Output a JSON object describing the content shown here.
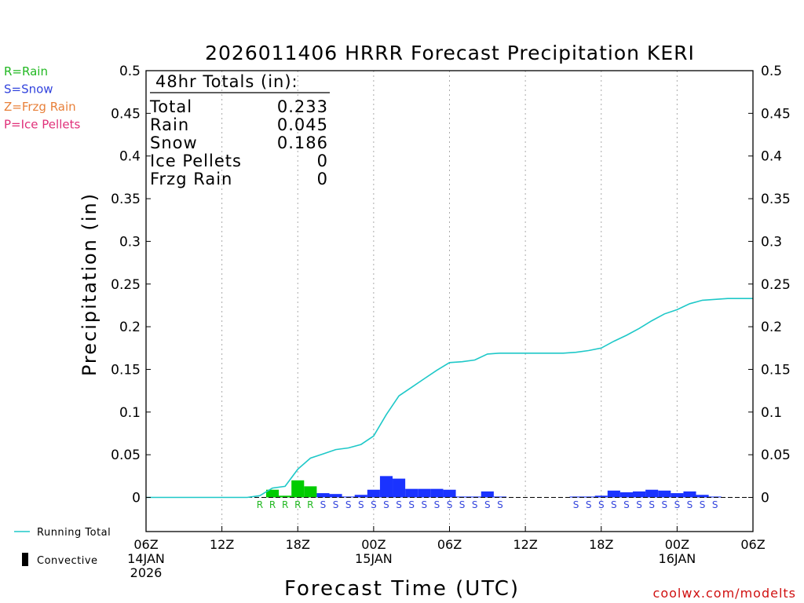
{
  "chart_data": {
    "type": "bar",
    "title": "2026011406 HRRR Forecast Precipitation KERI",
    "xlabel": "Forecast Time (UTC)",
    "ylabel": "Precipitation (in)",
    "ylim": [
      -0.04,
      0.5
    ],
    "xlim": [
      0,
      48
    ],
    "yticks": [
      0,
      0.05,
      0.1,
      0.15,
      0.2,
      0.25,
      0.3,
      0.35,
      0.4,
      0.45,
      0.5
    ],
    "ytick_labels": [
      "0",
      "0.05",
      "0.1",
      "0.15",
      "0.2",
      "0.25",
      "0.3",
      "0.35",
      "0.4",
      "0.45",
      "0.5"
    ],
    "xticks": [
      {
        "t": 0,
        "lines": [
          "06Z",
          "14JAN",
          "2026"
        ]
      },
      {
        "t": 6,
        "lines": [
          "12Z"
        ]
      },
      {
        "t": 12,
        "lines": [
          "18Z"
        ]
      },
      {
        "t": 18,
        "lines": [
          "00Z",
          "15JAN"
        ]
      },
      {
        "t": 24,
        "lines": [
          "06Z"
        ]
      },
      {
        "t": 30,
        "lines": [
          "12Z"
        ]
      },
      {
        "t": 36,
        "lines": [
          "18Z"
        ]
      },
      {
        "t": 42,
        "lines": [
          "00Z",
          "16JAN"
        ]
      },
      {
        "t": 48,
        "lines": [
          "06Z"
        ]
      }
    ],
    "gridlines_x": [
      6,
      12,
      18,
      24,
      30,
      36,
      42
    ],
    "bars": [
      {
        "t": 10,
        "value": 0.009,
        "ptype": "R"
      },
      {
        "t": 11,
        "value": 0.002,
        "ptype": "R"
      },
      {
        "t": 12,
        "value": 0.02,
        "ptype": "R"
      },
      {
        "t": 13,
        "value": 0.013,
        "ptype": "R"
      },
      {
        "t": 14,
        "value": 0.005,
        "ptype": "S"
      },
      {
        "t": 15,
        "value": 0.004,
        "ptype": "S"
      },
      {
        "t": 16,
        "value": 0.001,
        "ptype": "S"
      },
      {
        "t": 17,
        "value": 0.003,
        "ptype": "S"
      },
      {
        "t": 18,
        "value": 0.009,
        "ptype": "S"
      },
      {
        "t": 19,
        "value": 0.025,
        "ptype": "S"
      },
      {
        "t": 20,
        "value": 0.022,
        "ptype": "S"
      },
      {
        "t": 21,
        "value": 0.01,
        "ptype": "S"
      },
      {
        "t": 22,
        "value": 0.01,
        "ptype": "S"
      },
      {
        "t": 23,
        "value": 0.01,
        "ptype": "S"
      },
      {
        "t": 24,
        "value": 0.009,
        "ptype": "S"
      },
      {
        "t": 25,
        "value": 0.001,
        "ptype": "S"
      },
      {
        "t": 26,
        "value": 0.001,
        "ptype": "S"
      },
      {
        "t": 27,
        "value": 0.007,
        "ptype": "S"
      },
      {
        "t": 28,
        "value": 0.001,
        "ptype": "S"
      },
      {
        "t": 34,
        "value": 0.001,
        "ptype": "S"
      },
      {
        "t": 35,
        "value": 0.001,
        "ptype": "S"
      },
      {
        "t": 36,
        "value": 0.002,
        "ptype": "S"
      },
      {
        "t": 37,
        "value": 0.008,
        "ptype": "S"
      },
      {
        "t": 38,
        "value": 0.006,
        "ptype": "S"
      },
      {
        "t": 39,
        "value": 0.007,
        "ptype": "S"
      },
      {
        "t": 40,
        "value": 0.009,
        "ptype": "S"
      },
      {
        "t": 41,
        "value": 0.008,
        "ptype": "S"
      },
      {
        "t": 42,
        "value": 0.005,
        "ptype": "S"
      },
      {
        "t": 43,
        "value": 0.007,
        "ptype": "S"
      },
      {
        "t": 44,
        "value": 0.003,
        "ptype": "S"
      },
      {
        "t": 45,
        "value": 0.001,
        "ptype": "S"
      }
    ],
    "ptype_labels": [
      {
        "t": 9,
        "label": "R",
        "ptype": "R"
      },
      {
        "t": 10,
        "label": "R",
        "ptype": "R"
      },
      {
        "t": 11,
        "label": "R",
        "ptype": "R"
      },
      {
        "t": 12,
        "label": "R",
        "ptype": "R"
      },
      {
        "t": 13,
        "label": "R",
        "ptype": "R"
      },
      {
        "t": 14,
        "label": "S",
        "ptype": "S"
      },
      {
        "t": 15,
        "label": "S",
        "ptype": "S"
      },
      {
        "t": 16,
        "label": "S",
        "ptype": "S"
      },
      {
        "t": 17,
        "label": "S",
        "ptype": "S"
      },
      {
        "t": 18,
        "label": "S",
        "ptype": "S"
      },
      {
        "t": 19,
        "label": "S",
        "ptype": "S"
      },
      {
        "t": 20,
        "label": "S",
        "ptype": "S"
      },
      {
        "t": 21,
        "label": "S",
        "ptype": "S"
      },
      {
        "t": 22,
        "label": "S",
        "ptype": "S"
      },
      {
        "t": 23,
        "label": "S",
        "ptype": "S"
      },
      {
        "t": 24,
        "label": "S",
        "ptype": "S"
      },
      {
        "t": 25,
        "label": "S",
        "ptype": "S"
      },
      {
        "t": 26,
        "label": "S",
        "ptype": "S"
      },
      {
        "t": 27,
        "label": "S",
        "ptype": "S"
      },
      {
        "t": 28,
        "label": "S",
        "ptype": "S"
      },
      {
        "t": 34,
        "label": "S",
        "ptype": "S"
      },
      {
        "t": 35,
        "label": "S",
        "ptype": "S"
      },
      {
        "t": 36,
        "label": "S",
        "ptype": "S"
      },
      {
        "t": 37,
        "label": "S",
        "ptype": "S"
      },
      {
        "t": 38,
        "label": "S",
        "ptype": "S"
      },
      {
        "t": 39,
        "label": "S",
        "ptype": "S"
      },
      {
        "t": 40,
        "label": "S",
        "ptype": "S"
      },
      {
        "t": 41,
        "label": "S",
        "ptype": "S"
      },
      {
        "t": 42,
        "label": "S",
        "ptype": "S"
      },
      {
        "t": 43,
        "label": "S",
        "ptype": "S"
      },
      {
        "t": 44,
        "label": "S",
        "ptype": "S"
      },
      {
        "t": 45,
        "label": "S",
        "ptype": "S"
      }
    ],
    "running_total": {
      "x": [
        0,
        1,
        2,
        3,
        4,
        5,
        6,
        7,
        8,
        9,
        10,
        11,
        12,
        13,
        14,
        15,
        16,
        17,
        18,
        19,
        20,
        21,
        22,
        23,
        24,
        25,
        26,
        27,
        28,
        29,
        30,
        31,
        32,
        33,
        34,
        35,
        36,
        37,
        38,
        39,
        40,
        41,
        42,
        43,
        44,
        45,
        46,
        47,
        48
      ],
      "y": [
        0,
        0,
        0,
        0,
        0,
        0,
        0,
        0,
        0,
        0.002,
        0.011,
        0.013,
        0.033,
        0.046,
        0.051,
        0.056,
        0.058,
        0.062,
        0.072,
        0.097,
        0.119,
        0.129,
        0.139,
        0.149,
        0.158,
        0.159,
        0.161,
        0.168,
        0.169,
        0.169,
        0.169,
        0.169,
        0.169,
        0.169,
        0.17,
        0.172,
        0.175,
        0.183,
        0.19,
        0.198,
        0.207,
        0.215,
        0.22,
        0.227,
        0.231,
        0.232,
        0.233,
        0.233,
        0.233
      ]
    },
    "totals_box": {
      "heading": "48hr Totals (in):",
      "rows": [
        {
          "label": "Total",
          "value": "0.233"
        },
        {
          "label": "Rain",
          "value": "0.045"
        },
        {
          "label": "Snow",
          "value": "0.186"
        },
        {
          "label": "Ice Pellets",
          "value": "0"
        },
        {
          "label": "Frzg Rain",
          "value": "0"
        }
      ]
    },
    "ptype_legend": [
      {
        "text": "R=Rain",
        "color": "#22b822"
      },
      {
        "text": "S=Snow",
        "color": "#3344dd"
      },
      {
        "text": "Z=Frzg Rain",
        "color": "#e8803a"
      },
      {
        "text": "P=Ice Pellets",
        "color": "#e0307a"
      }
    ],
    "series_legend": {
      "running_total": "Running Total",
      "convective": "Convective"
    },
    "colors": {
      "rain_bar": "#00cc00",
      "snow_bar": "#1a33ff",
      "rain_label": "#22b822",
      "snow_label": "#3344dd",
      "running_total": "#1ec8c8",
      "grid": "#aaaaaa"
    },
    "credit": "coolwx.com/modelts"
  }
}
